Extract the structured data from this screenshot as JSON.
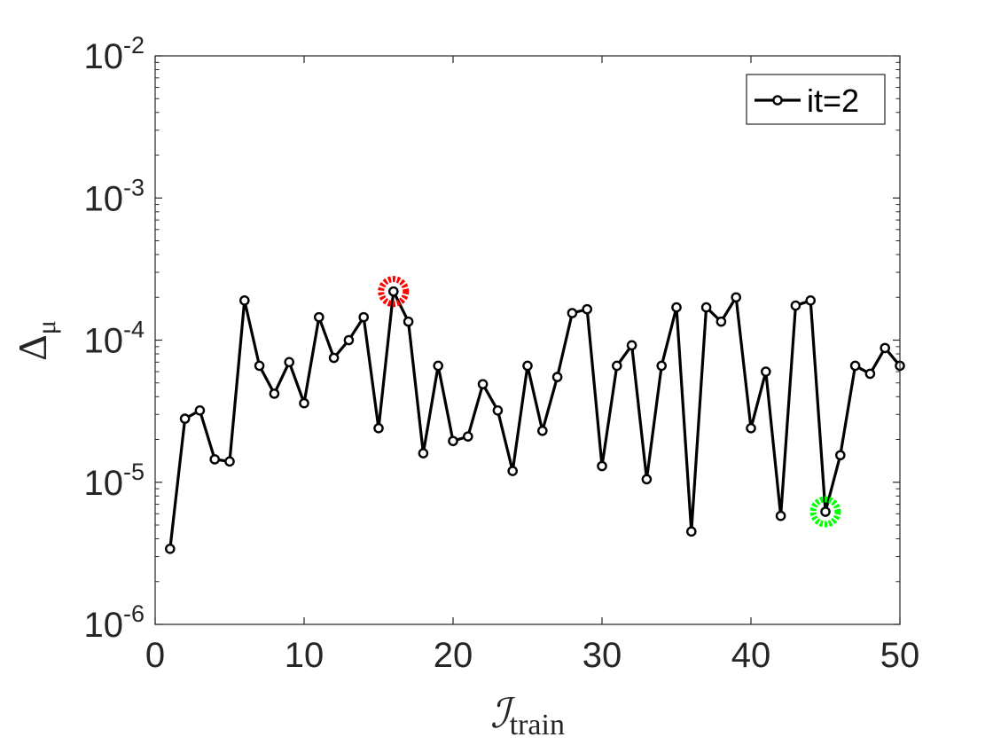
{
  "chart_data": {
    "type": "line",
    "title": "",
    "xlabel": {
      "main": "ℐ",
      "sub": "train"
    },
    "ylabel": {
      "main": "Δ",
      "sub": "μ"
    },
    "xlim": [
      0,
      50
    ],
    "ylim": [
      1e-06,
      0.01
    ],
    "yscale": "log",
    "x_ticks": [
      0,
      10,
      20,
      30,
      40,
      50
    ],
    "x_tick_labels": [
      "0",
      "10",
      "20",
      "30",
      "40",
      "50"
    ],
    "y_ticks": [
      {
        "value": 1e-06,
        "base": "10",
        "exp": "-6"
      },
      {
        "value": 1e-05,
        "base": "10",
        "exp": "-5"
      },
      {
        "value": 0.0001,
        "base": "10",
        "exp": "-4"
      },
      {
        "value": 0.001,
        "base": "10",
        "exp": "-3"
      },
      {
        "value": 0.01,
        "base": "10",
        "exp": "-2"
      }
    ],
    "grid": false,
    "legend_position": "top-right",
    "series": [
      {
        "name": "it=2",
        "color": "#000000",
        "marker": "circle",
        "x": [
          1,
          2,
          3,
          4,
          5,
          6,
          7,
          8,
          9,
          10,
          11,
          12,
          13,
          14,
          15,
          16,
          17,
          18,
          19,
          20,
          21,
          22,
          23,
          24,
          25,
          26,
          27,
          28,
          29,
          30,
          31,
          32,
          33,
          34,
          35,
          36,
          37,
          38,
          39,
          40,
          41,
          42,
          43,
          44,
          45,
          46,
          47,
          48,
          49,
          50
        ],
        "y": [
          3.4e-06,
          2.8e-05,
          3.2e-05,
          1.45e-05,
          1.4e-05,
          0.00019,
          6.6e-05,
          4.2e-05,
          7e-05,
          3.6e-05,
          0.000145,
          7.5e-05,
          0.0001,
          0.000145,
          2.4e-05,
          0.00022,
          0.000135,
          1.6e-05,
          6.6e-05,
          1.95e-05,
          2.1e-05,
          4.9e-05,
          3.2e-05,
          1.2e-05,
          6.6e-05,
          2.3e-05,
          5.5e-05,
          0.000155,
          0.000165,
          1.3e-05,
          6.6e-05,
          9.2e-05,
          1.05e-05,
          6.6e-05,
          0.00017,
          4.5e-06,
          0.00017,
          0.000135,
          0.0002,
          2.4e-05,
          6e-05,
          5.8e-06,
          0.000175,
          0.00019,
          6.2e-06,
          1.55e-05,
          6.6e-05,
          5.8e-05,
          8.8e-05,
          6.6e-05
        ]
      }
    ],
    "highlights": [
      {
        "x": 16,
        "y": 0.00022,
        "color": "#ff0000"
      },
      {
        "x": 45,
        "y": 6.2e-06,
        "color": "#00ff00"
      }
    ]
  }
}
